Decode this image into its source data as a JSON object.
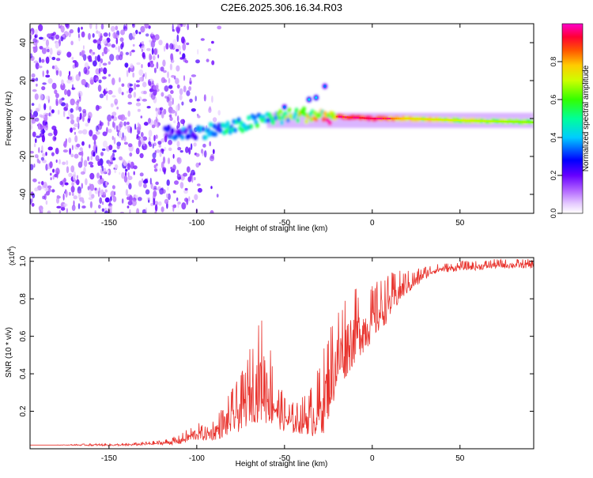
{
  "title": "C2E6.2025.306.16.34.R03",
  "chart_data": [
    {
      "type": "heatmap",
      "xlabel": "Height of straight line (km)",
      "ylabel": "Frequency (Hz)",
      "xlim": [
        -195,
        92
      ],
      "ylim": [
        -50,
        50
      ],
      "xticks": [
        -150,
        -100,
        -50,
        0,
        50
      ],
      "yticks": [
        -40,
        -20,
        0,
        20,
        40
      ],
      "colorbar": {
        "label": "Normalized spectral amplitude",
        "range": [
          0,
          1
        ],
        "ticks": [
          0.0,
          0.2,
          0.4,
          0.6,
          0.8
        ],
        "tick_labels": [
          "0.0",
          "0.2",
          "0.4",
          "0.6",
          "0.8"
        ],
        "colors": [
          "#ffffff",
          "#d9b3ff",
          "#8000ff",
          "#0000ff",
          "#00ffff",
          "#00ff00",
          "#ffff00",
          "#ff8000",
          "#ff0000",
          "#ff00ff"
        ]
      },
      "description_series": [
        {
          "name": "noise region",
          "x_range": [
            -195,
            -95
          ],
          "f_range": [
            -50,
            50
          ],
          "amplitude": 0.1
        },
        {
          "name": "main signal band",
          "x": [
            -115,
            -100,
            -80,
            -60,
            -40,
            -20,
            0,
            20,
            50,
            92
          ],
          "f": [
            -8,
            -7,
            -5,
            0,
            2,
            1,
            0,
            0,
            -1,
            -2
          ],
          "amplitude": [
            0.3,
            0.35,
            0.45,
            0.5,
            0.7,
            0.85,
            0.95,
            0.75,
            0.7,
            0.65
          ]
        },
        {
          "name": "harmonic blobs",
          "x": [
            -50,
            -36,
            -32,
            -27
          ],
          "f": [
            6,
            10,
            11,
            17
          ],
          "amplitude": [
            0.2,
            0.25,
            0.25,
            0.2
          ]
        }
      ]
    },
    {
      "type": "line",
      "xlabel": "Height of straight line (km)",
      "ylabel": "SNR (10 * v/v)",
      "yscale_label": "(x10",
      "yscale_exp": "4",
      "xlim": [
        -195,
        92
      ],
      "ylim": [
        0,
        1.02
      ],
      "xticks": [
        -150,
        -100,
        -50,
        0,
        50
      ],
      "yticks": [
        0.2,
        0.4,
        0.6,
        0.8,
        1.0
      ],
      "ytick_labels": [
        "0.2",
        "0.4",
        "0.6",
        "0.8",
        "1.0"
      ],
      "series": [
        {
          "name": "SNR",
          "color": "#e8322c",
          "x": [
            -195,
            -180,
            -160,
            -140,
            -120,
            -110,
            -105,
            -100,
            -95,
            -90,
            -85,
            -80,
            -75,
            -72,
            -70,
            -68,
            -66,
            -64,
            -62,
            -60,
            -58,
            -56,
            -54,
            -52,
            -50,
            -48,
            -46,
            -44,
            -42,
            -40,
            -38,
            -36,
            -34,
            -32,
            -30,
            -28,
            -26,
            -24,
            -22,
            -20,
            -18,
            -16,
            -14,
            -12,
            -10,
            -8,
            -6,
            -4,
            -2,
            0,
            2,
            4,
            6,
            8,
            10,
            12,
            14,
            16,
            18,
            20,
            22,
            24,
            26,
            28,
            30,
            32,
            35,
            40,
            45,
            50,
            60,
            70,
            80,
            92
          ],
          "y": [
            0.02,
            0.02,
            0.02,
            0.02,
            0.03,
            0.04,
            0.06,
            0.08,
            0.07,
            0.09,
            0.12,
            0.16,
            0.2,
            0.24,
            0.28,
            0.3,
            0.32,
            0.34,
            0.35,
            0.32,
            0.28,
            0.24,
            0.2,
            0.18,
            0.16,
            0.15,
            0.14,
            0.14,
            0.14,
            0.15,
            0.16,
            0.16,
            0.17,
            0.18,
            0.2,
            0.24,
            0.3,
            0.36,
            0.42,
            0.46,
            0.5,
            0.53,
            0.56,
            0.58,
            0.6,
            0.62,
            0.63,
            0.64,
            0.66,
            0.68,
            0.7,
            0.72,
            0.74,
            0.76,
            0.78,
            0.8,
            0.82,
            0.84,
            0.86,
            0.87,
            0.88,
            0.89,
            0.9,
            0.92,
            0.93,
            0.94,
            0.95,
            0.96,
            0.96,
            0.97,
            0.97,
            0.98,
            0.98,
            0.98
          ],
          "noise_amplitude": [
            0.0,
            0.0,
            0.005,
            0.005,
            0.01,
            0.02,
            0.03,
            0.04,
            0.03,
            0.05,
            0.07,
            0.1,
            0.12,
            0.14,
            0.16,
            0.18,
            0.2,
            0.22,
            0.24,
            0.22,
            0.18,
            0.14,
            0.1,
            0.09,
            0.08,
            0.08,
            0.07,
            0.07,
            0.07,
            0.08,
            0.09,
            0.1,
            0.12,
            0.14,
            0.16,
            0.18,
            0.2,
            0.2,
            0.2,
            0.2,
            0.2,
            0.2,
            0.18,
            0.18,
            0.16,
            0.15,
            0.14,
            0.14,
            0.13,
            0.12,
            0.12,
            0.12,
            0.11,
            0.1,
            0.1,
            0.09,
            0.08,
            0.07,
            0.06,
            0.05,
            0.05,
            0.04,
            0.04,
            0.03,
            0.03,
            0.03,
            0.02,
            0.02,
            0.02,
            0.02,
            0.02,
            0.02,
            0.02,
            0.02
          ]
        }
      ]
    }
  ]
}
